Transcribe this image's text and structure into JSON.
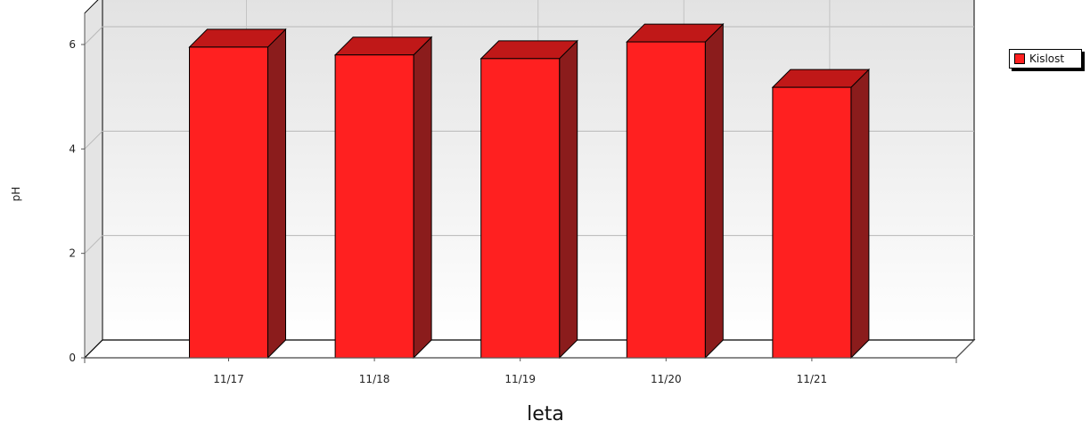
{
  "chart_data": {
    "type": "bar",
    "categories": [
      "11/17",
      "11/18",
      "11/19",
      "11/20",
      "11/21"
    ],
    "series": [
      {
        "name": "Kislost",
        "values": [
          5.95,
          5.8,
          5.73,
          6.05,
          5.18
        ],
        "color": "#ff2020"
      }
    ],
    "title": "",
    "xlabel": "leta",
    "ylabel": "pH",
    "ylim": [
      0,
      6.6
    ],
    "yticks": [
      0,
      2,
      4,
      6
    ],
    "grid": true,
    "legend_position": "top-right",
    "style": "3d"
  }
}
